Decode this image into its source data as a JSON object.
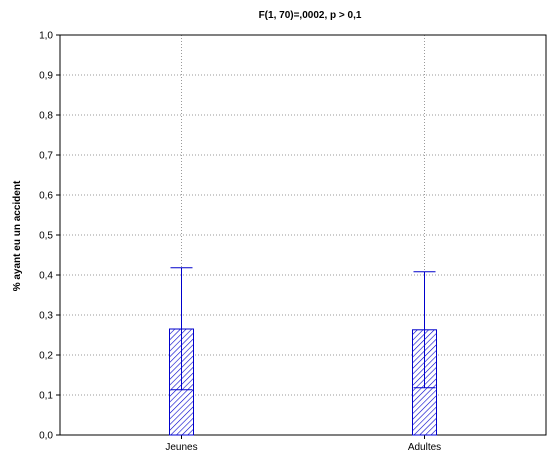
{
  "chart_data": {
    "type": "bar",
    "title": "F(1, 70)=,0002, p > 0,1",
    "xlabel": "",
    "ylabel": "% ayant eu un accident",
    "categories": [
      "Jeunes",
      "Adultes"
    ],
    "values": [
      0.265,
      0.263
    ],
    "error_low": [
      0.113,
      0.118
    ],
    "error_high": [
      0.418,
      0.408
    ],
    "ylim": [
      0,
      1.0
    ],
    "yticks": [
      "0,0",
      "0,1",
      "0,2",
      "0,3",
      "0,4",
      "0,5",
      "0,6",
      "0,7",
      "0,8",
      "0,9",
      "1,0"
    ],
    "ytick_values": [
      0,
      0.1,
      0.2,
      0.3,
      0.4,
      0.5,
      0.6,
      0.7,
      0.8,
      0.9,
      1.0
    ],
    "grid": true,
    "bar_color": "#0000cc",
    "bar_fill_pattern": "diagonal-hatch"
  }
}
